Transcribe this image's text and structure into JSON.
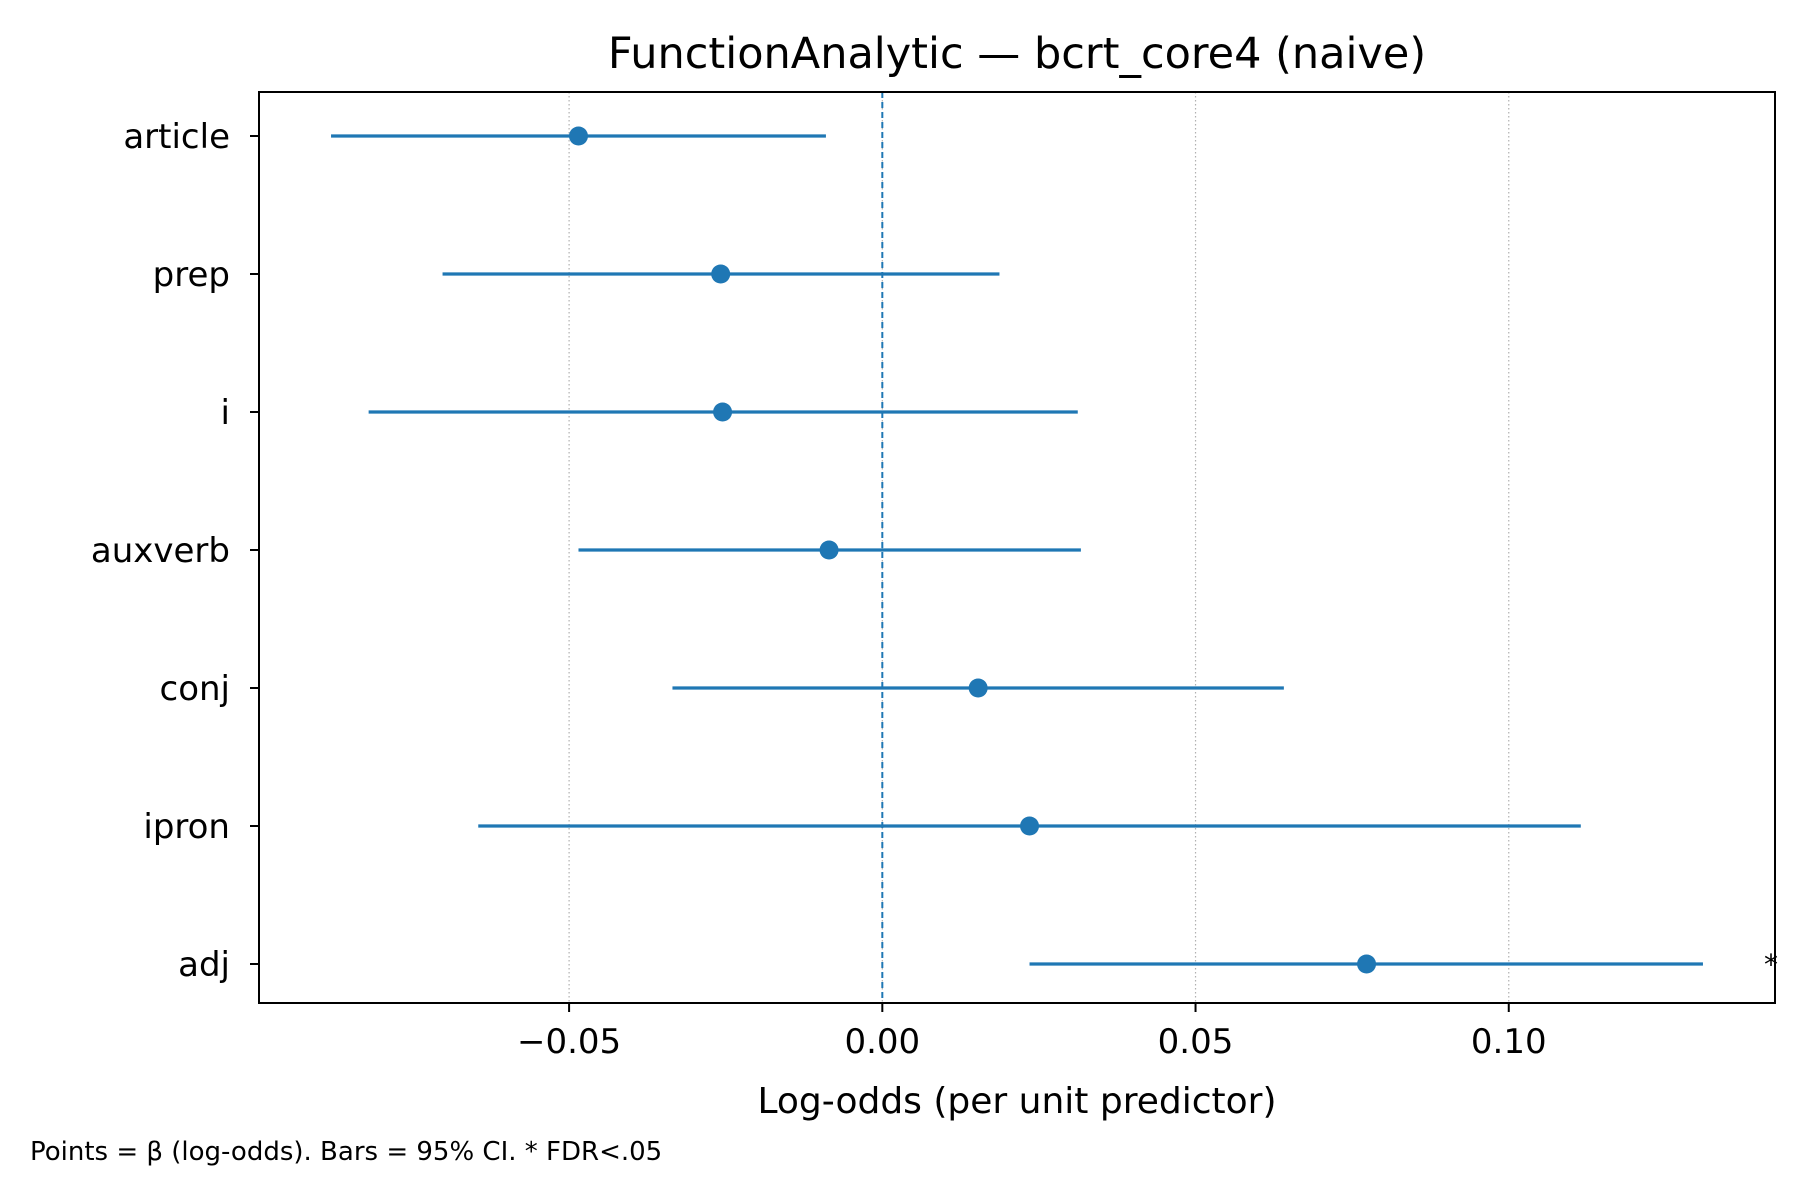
{
  "chart_data": {
    "type": "forest",
    "title": "FunctionAnalytic — bcrt_core4 (naive)",
    "xlabel": "Log-odds (per unit predictor)",
    "ylabel": "",
    "xlim": [
      -0.0995,
      0.1425
    ],
    "xticks": [
      -0.05,
      0.0,
      0.05,
      0.1
    ],
    "xtick_labels": [
      "−0.05",
      "0.00",
      "0.05",
      "0.10"
    ],
    "reference_line": 0.0,
    "grid": "vertical dotted",
    "color": "#1f77b4",
    "footnote": "Points = β (log-odds). Bars = 95% CI. * FDR<.05",
    "significance_marker": "*",
    "rows": [
      {
        "label": "article",
        "beta": -0.0485,
        "ci_low": -0.088,
        "ci_high": -0.009,
        "significant": false
      },
      {
        "label": "prep",
        "beta": -0.0258,
        "ci_low": -0.0702,
        "ci_high": 0.0187,
        "significant": false
      },
      {
        "label": "i",
        "beta": -0.0255,
        "ci_low": -0.082,
        "ci_high": 0.0312,
        "significant": false
      },
      {
        "label": "auxverb",
        "beta": -0.0085,
        "ci_low": -0.0485,
        "ci_high": 0.0317,
        "significant": false
      },
      {
        "label": "conj",
        "beta": 0.0153,
        "ci_low": -0.0335,
        "ci_high": 0.0641,
        "significant": false
      },
      {
        "label": "ipron",
        "beta": 0.0235,
        "ci_low": -0.0645,
        "ci_high": 0.1115,
        "significant": false
      },
      {
        "label": "adj",
        "beta": 0.0773,
        "ci_low": 0.0235,
        "ci_high": 0.131,
        "significant": true
      }
    ]
  }
}
